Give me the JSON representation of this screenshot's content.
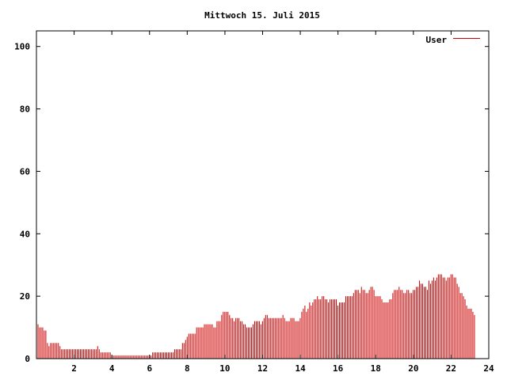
{
  "chart_data": {
    "type": "bar",
    "title": "Mittwoch 15. Juli 2015",
    "xlabel": "",
    "ylabel": "",
    "xlim": [
      0,
      24
    ],
    "ylim": [
      0,
      105
    ],
    "x_tick_labels": [
      "2",
      "4",
      "6",
      "8",
      "10",
      "12",
      "14",
      "16",
      "18",
      "20",
      "22",
      "24"
    ],
    "y_tick_labels": [
      "0",
      "20",
      "40",
      "60",
      "80",
      "100"
    ],
    "grid": false,
    "legend_placement": "top-right",
    "series": [
      {
        "name": "User",
        "color": "#cc0000",
        "x_start": 0,
        "x_step": 0.0833,
        "values": [
          13,
          11,
          10,
          10,
          10,
          9,
          9,
          5,
          4,
          5,
          5,
          5,
          5,
          5,
          5,
          4,
          3,
          3,
          3,
          3,
          3,
          3,
          3,
          3,
          3,
          3,
          3,
          3,
          3,
          3,
          3,
          3,
          3,
          3,
          3,
          3,
          3,
          3,
          3,
          4,
          3,
          2,
          2,
          2,
          2,
          2,
          2,
          2,
          1,
          1,
          1,
          1,
          1,
          1,
          1,
          1,
          1,
          1,
          1,
          1,
          1,
          1,
          1,
          1,
          1,
          1,
          1,
          1,
          1,
          1,
          1,
          1,
          1,
          1,
          2,
          2,
          2,
          2,
          2,
          2,
          2,
          2,
          2,
          2,
          2,
          2,
          2,
          2,
          3,
          3,
          3,
          3,
          3,
          5,
          5,
          6,
          7,
          8,
          8,
          8,
          8,
          8,
          10,
          10,
          10,
          10,
          10,
          11,
          11,
          11,
          11,
          11,
          11,
          10,
          10,
          12,
          12,
          12,
          14,
          15,
          15,
          15,
          15,
          14,
          13,
          13,
          12,
          13,
          13,
          13,
          12,
          12,
          11,
          11,
          10,
          10,
          10,
          10,
          11,
          12,
          12,
          12,
          12,
          11,
          12,
          13,
          14,
          14,
          13,
          13,
          13,
          13,
          13,
          13,
          13,
          13,
          13,
          14,
          13,
          12,
          12,
          12,
          13,
          13,
          13,
          12,
          12,
          12,
          13,
          15,
          16,
          17,
          15,
          16,
          18,
          17,
          18,
          19,
          19,
          20,
          19,
          19,
          20,
          20,
          19,
          19,
          18,
          19,
          19,
          19,
          19,
          19,
          17,
          18,
          18,
          18,
          18,
          20,
          20,
          20,
          20,
          20,
          21,
          22,
          22,
          22,
          21,
          23,
          22,
          22,
          21,
          21,
          22,
          23,
          23,
          22,
          20,
          20,
          20,
          20,
          19,
          18,
          18,
          18,
          18,
          19,
          19,
          21,
          22,
          22,
          22,
          23,
          22,
          22,
          21,
          21,
          22,
          22,
          21,
          21,
          22,
          22,
          23,
          23,
          25,
          24,
          24,
          23,
          23,
          22,
          25,
          24,
          25,
          26,
          25,
          26,
          27,
          27,
          27,
          26,
          26,
          25,
          26,
          26,
          27,
          27,
          26,
          26,
          24,
          23,
          21,
          21,
          20,
          19,
          17,
          16,
          16,
          16,
          15,
          14
        ]
      }
    ]
  }
}
